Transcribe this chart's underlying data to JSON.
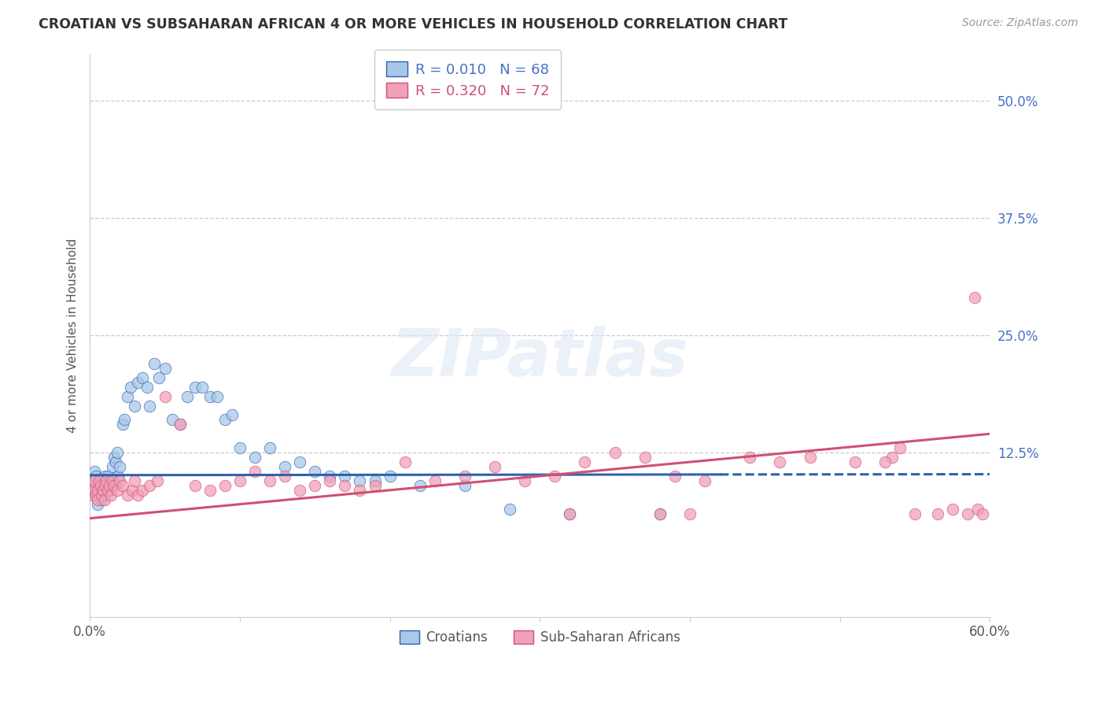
{
  "title": "CROATIAN VS SUBSAHARAN AFRICAN 4 OR MORE VEHICLES IN HOUSEHOLD CORRELATION CHART",
  "source": "Source: ZipAtlas.com",
  "ylabel": "4 or more Vehicles in Household",
  "ytick_labels": [
    "50.0%",
    "37.5%",
    "25.0%",
    "12.5%"
  ],
  "ytick_values": [
    0.5,
    0.375,
    0.25,
    0.125
  ],
  "xlim": [
    0.0,
    0.6
  ],
  "ylim": [
    -0.05,
    0.55
  ],
  "legend_croatian": "R = 0.010   N = 68",
  "legend_subsaharan": "R = 0.320   N = 72",
  "legend_label1": "Croatians",
  "legend_label2": "Sub-Saharan Africans",
  "color_blue": "#a8c8e8",
  "color_pink": "#f0a0b8",
  "color_blue_line": "#3060b0",
  "color_pink_line": "#d05070",
  "color_blue_text": "#4472c4",
  "color_pink_text": "#d05070",
  "watermark_text": "ZIPatlas",
  "croatian_x": [
    0.001,
    0.002,
    0.003,
    0.003,
    0.004,
    0.004,
    0.005,
    0.005,
    0.006,
    0.007,
    0.007,
    0.008,
    0.008,
    0.009,
    0.009,
    0.01,
    0.01,
    0.011,
    0.011,
    0.012,
    0.012,
    0.013,
    0.013,
    0.014,
    0.014,
    0.015,
    0.016,
    0.017,
    0.018,
    0.019,
    0.02,
    0.022,
    0.023,
    0.025,
    0.027,
    0.03,
    0.032,
    0.035,
    0.038,
    0.04,
    0.043,
    0.046,
    0.05,
    0.055,
    0.06,
    0.065,
    0.07,
    0.075,
    0.08,
    0.085,
    0.09,
    0.095,
    0.1,
    0.11,
    0.12,
    0.13,
    0.14,
    0.15,
    0.16,
    0.17,
    0.18,
    0.19,
    0.2,
    0.22,
    0.25,
    0.28,
    0.32,
    0.38
  ],
  "croatian_y": [
    0.09,
    0.085,
    0.095,
    0.105,
    0.08,
    0.1,
    0.07,
    0.09,
    0.095,
    0.085,
    0.095,
    0.075,
    0.09,
    0.095,
    0.08,
    0.09,
    0.1,
    0.095,
    0.085,
    0.09,
    0.1,
    0.095,
    0.085,
    0.09,
    0.095,
    0.11,
    0.12,
    0.115,
    0.125,
    0.1,
    0.11,
    0.155,
    0.16,
    0.185,
    0.195,
    0.175,
    0.2,
    0.205,
    0.195,
    0.175,
    0.22,
    0.205,
    0.215,
    0.16,
    0.155,
    0.185,
    0.195,
    0.195,
    0.185,
    0.185,
    0.16,
    0.165,
    0.13,
    0.12,
    0.13,
    0.11,
    0.115,
    0.105,
    0.1,
    0.1,
    0.095,
    0.095,
    0.1,
    0.09,
    0.09,
    0.065,
    0.06,
    0.06
  ],
  "subsaharan_x": [
    0.001,
    0.002,
    0.003,
    0.003,
    0.004,
    0.005,
    0.005,
    0.006,
    0.007,
    0.008,
    0.009,
    0.01,
    0.01,
    0.011,
    0.012,
    0.013,
    0.014,
    0.015,
    0.016,
    0.018,
    0.02,
    0.022,
    0.025,
    0.028,
    0.03,
    0.032,
    0.035,
    0.04,
    0.045,
    0.05,
    0.06,
    0.07,
    0.08,
    0.09,
    0.1,
    0.11,
    0.12,
    0.13,
    0.14,
    0.15,
    0.16,
    0.17,
    0.18,
    0.19,
    0.21,
    0.23,
    0.25,
    0.27,
    0.29,
    0.31,
    0.33,
    0.35,
    0.37,
    0.39,
    0.41,
    0.44,
    0.46,
    0.48,
    0.51,
    0.535,
    0.55,
    0.565,
    0.575,
    0.585,
    0.592,
    0.53,
    0.54,
    0.38,
    0.4,
    0.32,
    0.59,
    0.595
  ],
  "subsaharan_y": [
    0.08,
    0.09,
    0.085,
    0.095,
    0.08,
    0.085,
    0.075,
    0.095,
    0.09,
    0.08,
    0.085,
    0.09,
    0.075,
    0.095,
    0.085,
    0.09,
    0.08,
    0.095,
    0.09,
    0.085,
    0.095,
    0.09,
    0.08,
    0.085,
    0.095,
    0.08,
    0.085,
    0.09,
    0.095,
    0.185,
    0.155,
    0.09,
    0.085,
    0.09,
    0.095,
    0.105,
    0.095,
    0.1,
    0.085,
    0.09,
    0.095,
    0.09,
    0.085,
    0.09,
    0.115,
    0.095,
    0.1,
    0.11,
    0.095,
    0.1,
    0.115,
    0.125,
    0.12,
    0.1,
    0.095,
    0.12,
    0.115,
    0.12,
    0.115,
    0.12,
    0.06,
    0.06,
    0.065,
    0.06,
    0.065,
    0.115,
    0.13,
    0.06,
    0.06,
    0.06,
    0.29,
    0.06
  ],
  "blue_line_solid_end": 0.42,
  "blue_line_start_y": 0.101,
  "blue_line_end_y": 0.102,
  "pink_line_start_y": 0.055,
  "pink_line_end_y": 0.145
}
